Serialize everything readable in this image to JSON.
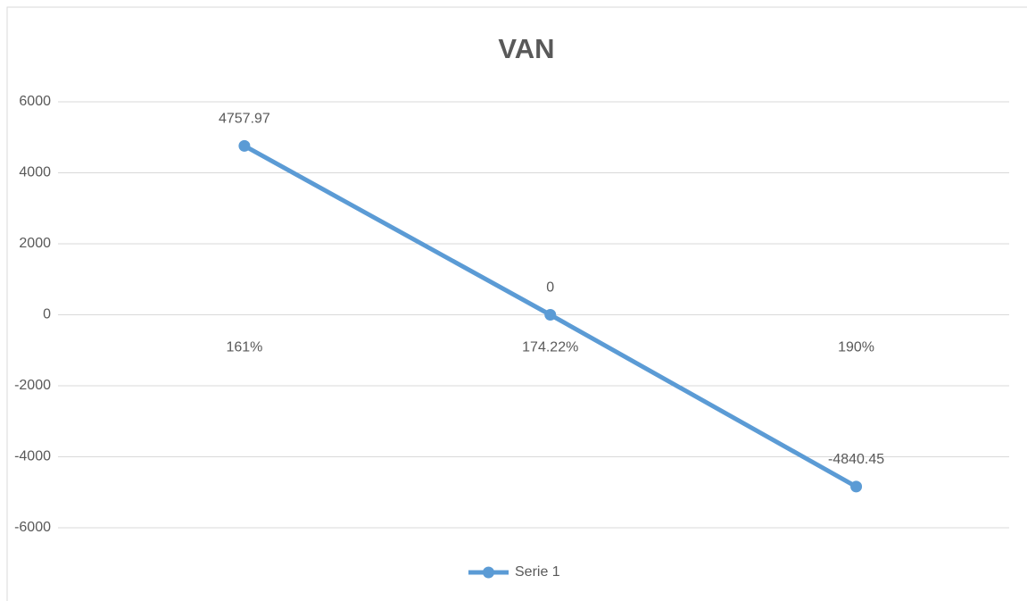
{
  "chart_data": {
    "type": "line",
    "title": "VAN",
    "categories": [
      "161%",
      "174.22%",
      "190%"
    ],
    "series": [
      {
        "name": "Serie 1",
        "color": "#5b9bd5",
        "values": [
          4757.97,
          0,
          -4840.45
        ]
      }
    ],
    "ylim": [
      -6000,
      6000
    ],
    "yticks": [
      -6000,
      -4000,
      -2000,
      0,
      2000,
      4000,
      6000
    ],
    "grid": true,
    "legend": "bottom",
    "data_labels": true
  }
}
